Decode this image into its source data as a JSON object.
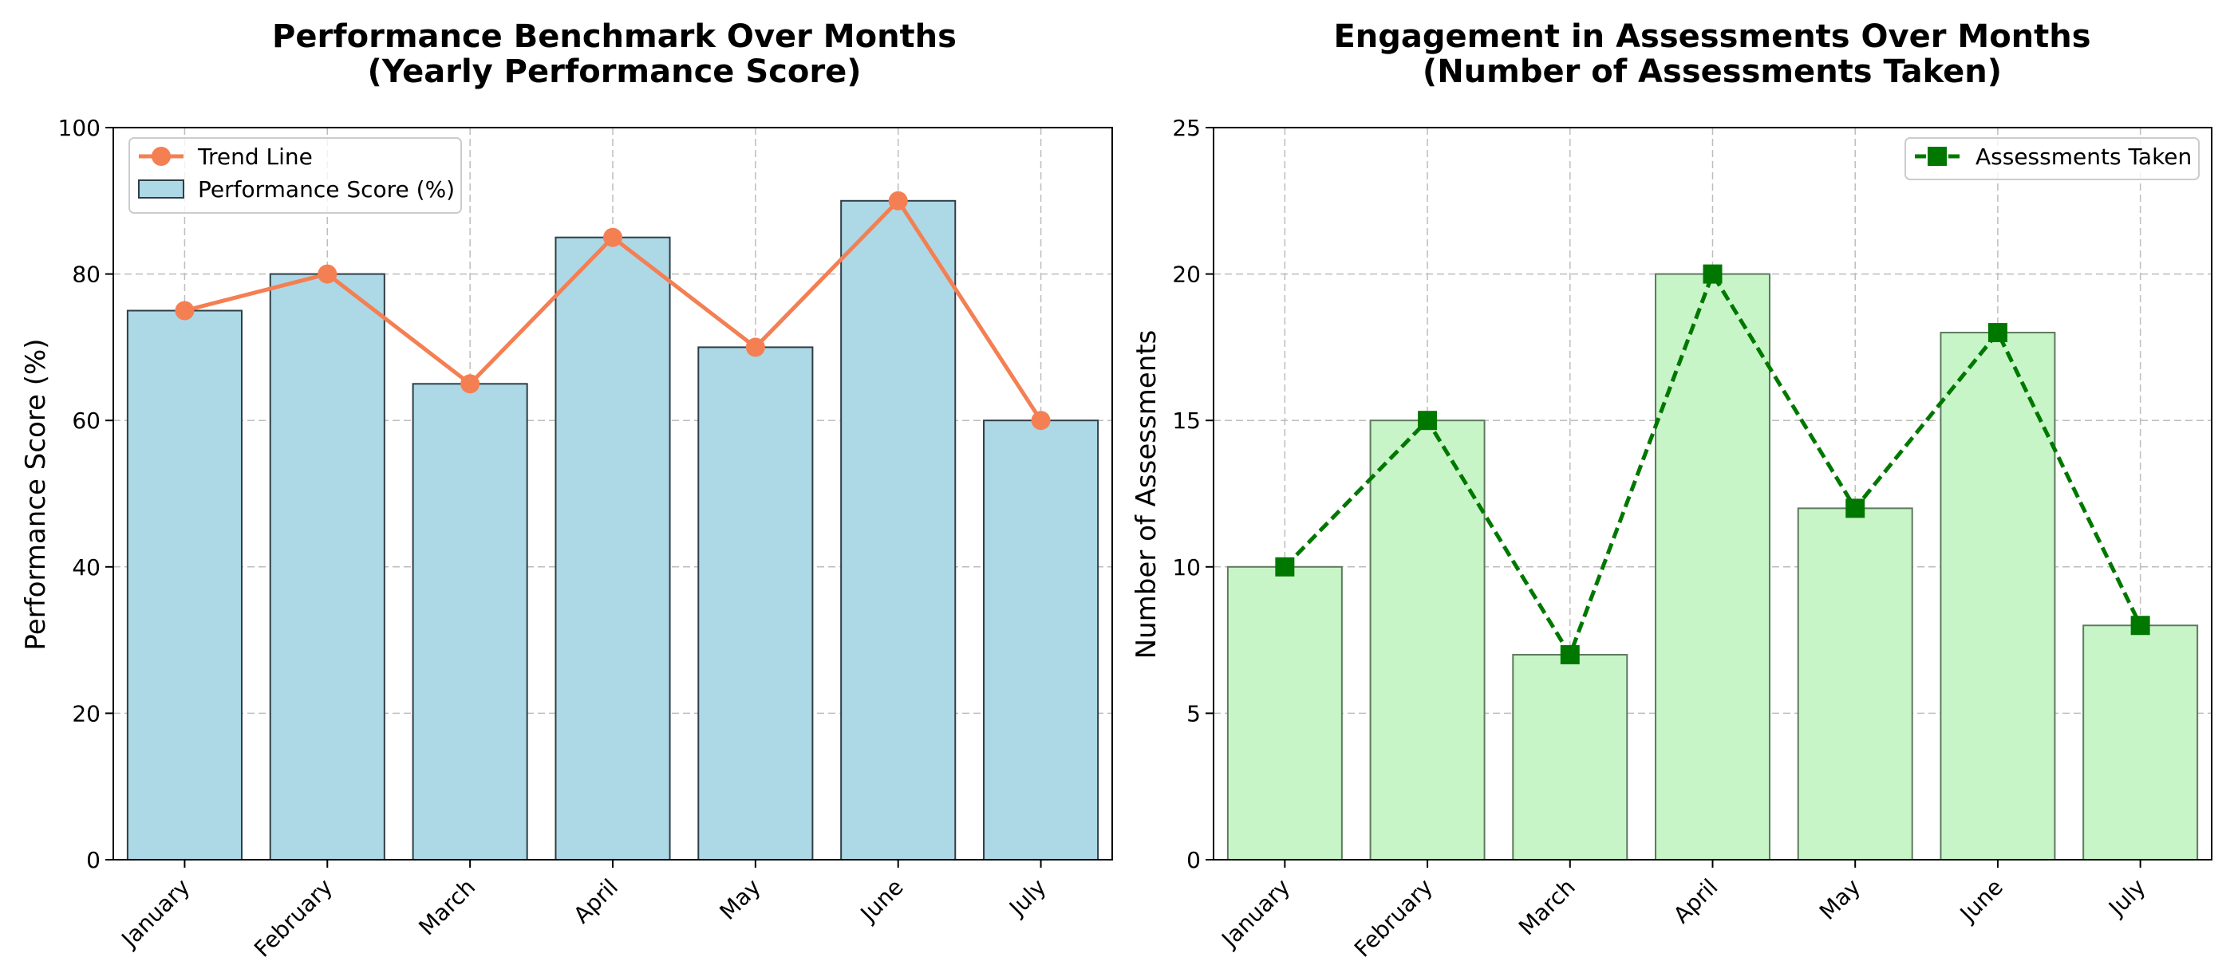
{
  "chart_data": [
    {
      "type": "bar",
      "title_lines": [
        "Performance Benchmark Over Months",
        "(Yearly Performance Score)"
      ],
      "xlabel": "",
      "ylabel": "Performance Score (%)",
      "categories": [
        "January",
        "February",
        "March",
        "April",
        "May",
        "June",
        "July"
      ],
      "ylim": [
        0,
        100
      ],
      "yticks": [
        0,
        20,
        40,
        60,
        80,
        100
      ],
      "grid": true,
      "legend_position": "top-left",
      "series": [
        {
          "name": "Performance Score (%)",
          "kind": "bar",
          "values": [
            75,
            80,
            65,
            85,
            70,
            90,
            60
          ],
          "color": "#ADD8E6",
          "edge_color": "#2F3E46"
        },
        {
          "name": "Trend Line",
          "kind": "line",
          "values": [
            75,
            80,
            65,
            85,
            70,
            90,
            60
          ],
          "color": "#F47F53",
          "marker": "circle",
          "line_style": "solid"
        }
      ]
    },
    {
      "type": "bar",
      "title_lines": [
        "Engagement in Assessments Over Months",
        "(Number of Assessments Taken)"
      ],
      "xlabel": "",
      "ylabel": "Number of Assessments",
      "categories": [
        "January",
        "February",
        "March",
        "April",
        "May",
        "June",
        "July"
      ],
      "ylim": [
        0,
        25
      ],
      "yticks": [
        0,
        5,
        10,
        15,
        20,
        25
      ],
      "grid": true,
      "legend_position": "top-right",
      "series": [
        {
          "name": "",
          "kind": "bar",
          "values": [
            10,
            15,
            7,
            20,
            12,
            18,
            8
          ],
          "color": "#C8F5C8",
          "edge_color": "#5E7A5E"
        },
        {
          "name": "Assessments Taken",
          "kind": "line",
          "values": [
            10,
            15,
            7,
            20,
            12,
            18,
            8
          ],
          "color": "#007800",
          "marker": "square",
          "line_style": "dashed"
        }
      ]
    }
  ]
}
